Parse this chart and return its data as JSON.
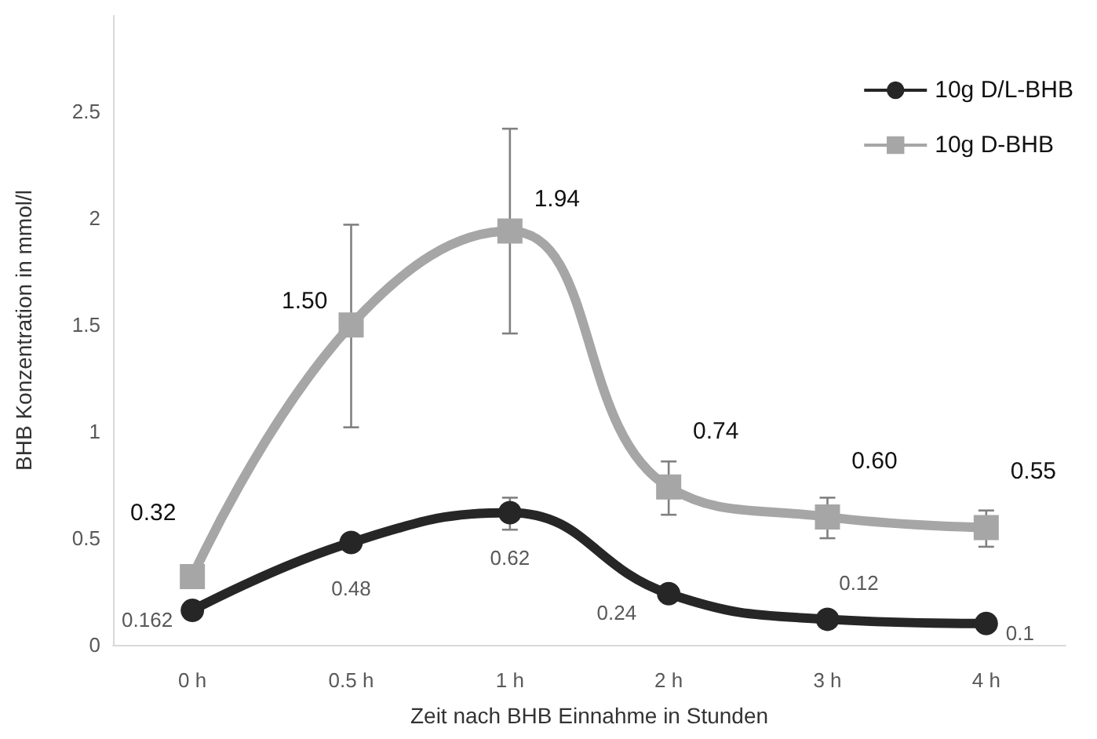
{
  "chart_data": {
    "type": "line",
    "xlabel": "Zeit nach BHB Einnahme in Stunden",
    "ylabel": "BHB Konzentration in mmol/l",
    "categories": [
      "0 h",
      "0.5 h",
      "1 h",
      "2 h",
      "3 h",
      "4 h"
    ],
    "series": [
      {
        "name": "10g D/L-BHB",
        "color": "#262626",
        "marker": "circle",
        "values": [
          0.162,
          0.48,
          0.62,
          0.24,
          0.12,
          0.1
        ],
        "value_labels": [
          "0.162",
          "0.48",
          "0.62",
          "0.24",
          "0.12",
          "0.1"
        ],
        "errors": [
          null,
          null,
          [
            0.54,
            0.69
          ],
          null,
          null,
          null
        ]
      },
      {
        "name": "10g D-BHB",
        "color": "#a6a6a6",
        "marker": "square",
        "values": [
          0.32,
          1.5,
          1.94,
          0.74,
          0.6,
          0.55
        ],
        "value_labels": [
          "0.32",
          "1.50",
          "1.94",
          "0.74",
          "0.60",
          "0.55"
        ],
        "errors": [
          [
            0.28,
            0.36
          ],
          [
            1.02,
            1.97
          ],
          [
            1.46,
            2.42
          ],
          [
            0.61,
            0.86
          ],
          [
            0.5,
            0.69
          ],
          [
            0.46,
            0.63
          ]
        ]
      }
    ],
    "ylim": [
      0,
      2.95
    ],
    "yticks": [
      0,
      0.5,
      1,
      1.5,
      2,
      2.5
    ],
    "grid": false,
    "legend": "top right"
  }
}
